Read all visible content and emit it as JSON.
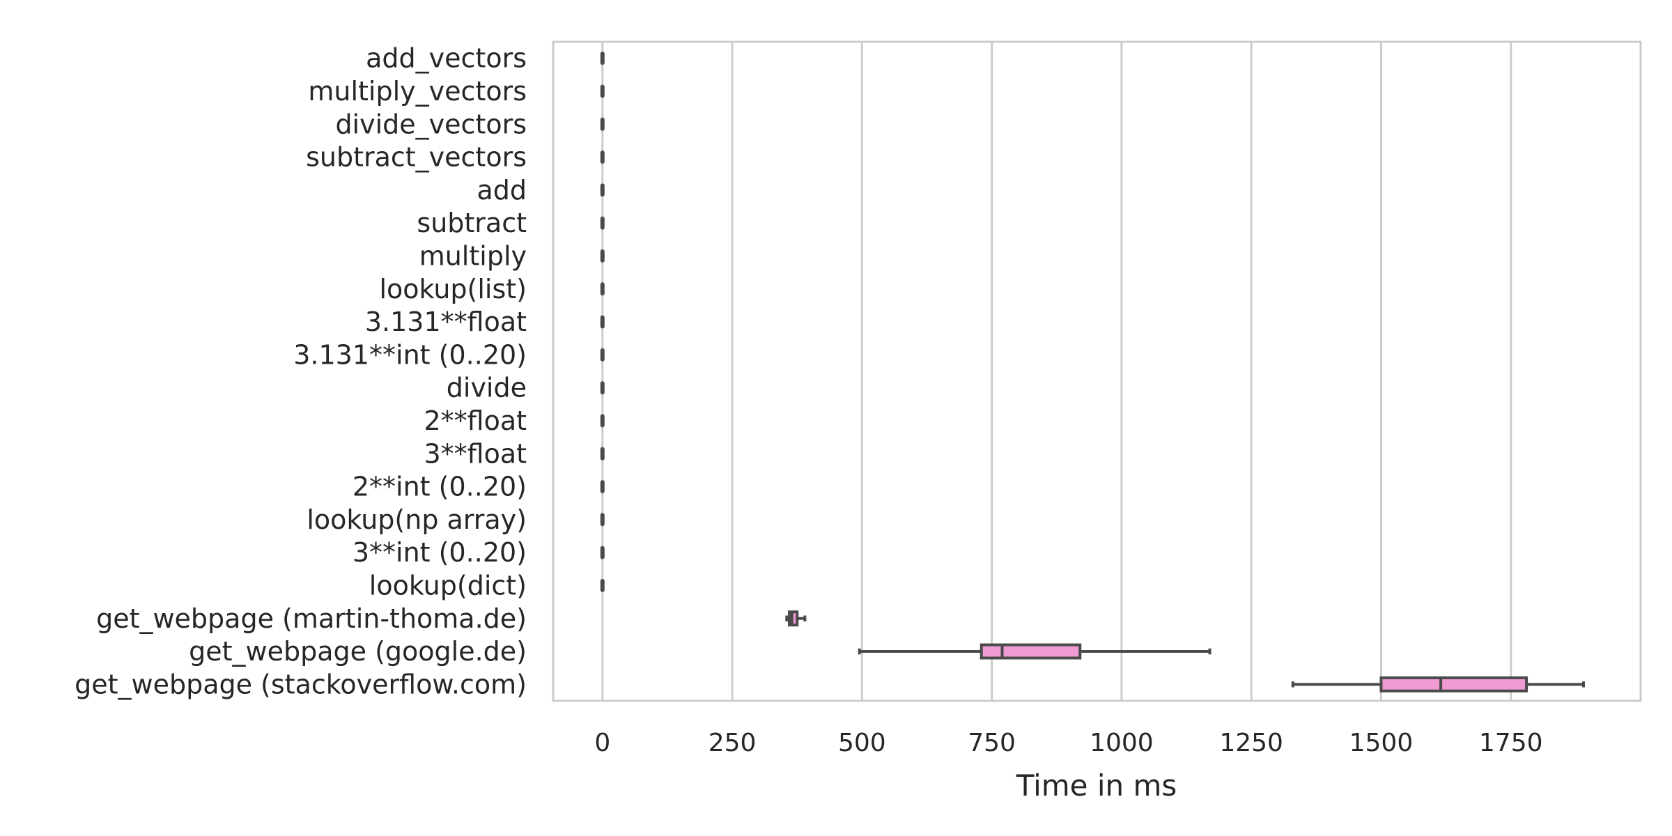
{
  "chart_data": {
    "type": "box",
    "orientation": "horizontal",
    "xlabel": "Time in ms",
    "ylabel": "",
    "xlim": [
      -95,
      2000
    ],
    "xticks": [
      0,
      250,
      500,
      750,
      1000,
      1250,
      1500,
      1750
    ],
    "grid": "vertical",
    "colors": {
      "box_fill": "#f09ad3",
      "line": "#4a4a4a",
      "grid": "#cccccc",
      "frame": "#cccccc"
    },
    "categories": [
      "add_vectors",
      "multiply_vectors",
      "divide_vectors",
      "subtract_vectors",
      "add",
      "subtract",
      "multiply",
      "lookup(list)",
      "3.131**float",
      "3.131**int (0..20)",
      "divide",
      "2**float",
      "3**float",
      "2**int (0..20)",
      "lookup(np array)",
      "3**int (0..20)",
      "lookup(dict)",
      "get_webpage (martin-thoma.de)",
      "get_webpage (google.de)",
      "get_webpage (stackoverflow.com)"
    ],
    "boxes": [
      {
        "min": 0,
        "q1": 0,
        "median": 0,
        "q3": 0,
        "max": 0
      },
      {
        "min": 0,
        "q1": 0,
        "median": 0,
        "q3": 0,
        "max": 0
      },
      {
        "min": 0,
        "q1": 0,
        "median": 0,
        "q3": 0,
        "max": 0
      },
      {
        "min": 0,
        "q1": 0,
        "median": 0,
        "q3": 0,
        "max": 0
      },
      {
        "min": 0,
        "q1": 0,
        "median": 0,
        "q3": 0,
        "max": 0
      },
      {
        "min": 0,
        "q1": 0,
        "median": 0,
        "q3": 0,
        "max": 0
      },
      {
        "min": 0,
        "q1": 0,
        "median": 0,
        "q3": 0,
        "max": 0
      },
      {
        "min": 0,
        "q1": 0,
        "median": 0,
        "q3": 0,
        "max": 0
      },
      {
        "min": 0,
        "q1": 0,
        "median": 0,
        "q3": 0,
        "max": 0
      },
      {
        "min": 0,
        "q1": 0,
        "median": 0,
        "q3": 0,
        "max": 0
      },
      {
        "min": 0,
        "q1": 0,
        "median": 0,
        "q3": 0,
        "max": 0
      },
      {
        "min": 0,
        "q1": 0,
        "median": 0,
        "q3": 0,
        "max": 0
      },
      {
        "min": 0,
        "q1": 0,
        "median": 0,
        "q3": 0,
        "max": 0
      },
      {
        "min": 0,
        "q1": 0,
        "median": 0,
        "q3": 0,
        "max": 0
      },
      {
        "min": 0,
        "q1": 0,
        "median": 0,
        "q3": 0,
        "max": 0
      },
      {
        "min": 0,
        "q1": 0,
        "median": 0,
        "q3": 0,
        "max": 0
      },
      {
        "min": 0,
        "q1": 0,
        "median": 0,
        "q3": 0,
        "max": 0
      },
      {
        "min": 355,
        "q1": 360,
        "median": 365,
        "q3": 375,
        "max": 390
      },
      {
        "min": 495,
        "q1": 730,
        "median": 770,
        "q3": 920,
        "max": 1170
      },
      {
        "min": 1330,
        "q1": 1500,
        "median": 1615,
        "q3": 1780,
        "max": 1890
      }
    ]
  }
}
